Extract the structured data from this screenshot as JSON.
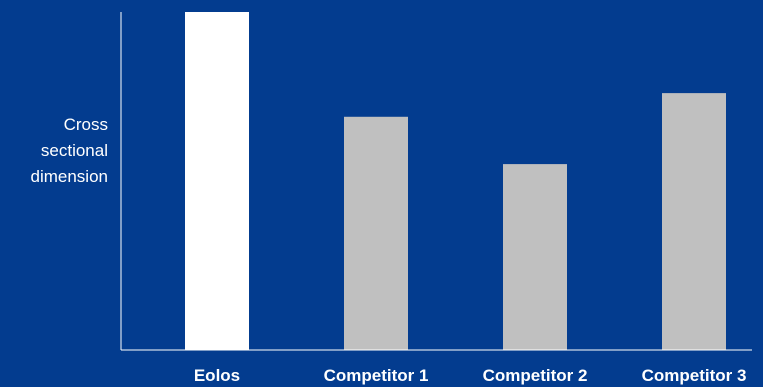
{
  "chart_data": {
    "type": "bar",
    "title": "",
    "xlabel": "",
    "ylabel_lines": [
      "Cross",
      "sectional",
      "dimension"
    ],
    "categories": [
      "Eolos",
      "Competitor 1",
      "Competitor 2",
      "Competitor 3"
    ],
    "values": [
      100,
      69,
      55,
      76
    ],
    "ylim": [
      0,
      100
    ],
    "grid": false,
    "highlight_color": "#ffffff",
    "bar_color": "#c0c0c0",
    "background_color": "#033c8f",
    "axis_color": "#ffffff"
  }
}
